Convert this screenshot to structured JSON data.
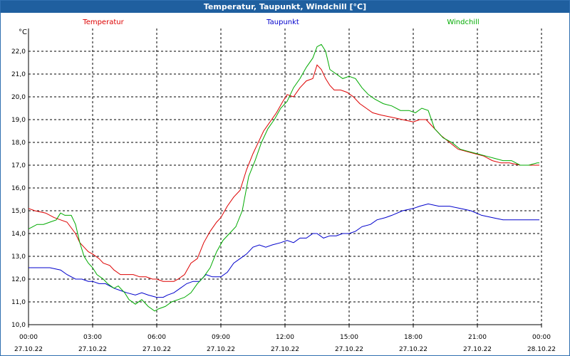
{
  "window": {
    "title": "Temperatur, Taupunkt, Windchill [°C]"
  },
  "colors": {
    "temperature": "#dd0000",
    "dewpoint": "#0000cc",
    "windchill": "#00aa00",
    "title_bg": "#1f5f9f",
    "grid": "#000000"
  },
  "chart_data": {
    "type": "line",
    "title": "Temperatur, Taupunkt, Windchill [°C]",
    "ylabel": "°C",
    "xlabel": "",
    "ylim": [
      10.0,
      22.0
    ],
    "xlim": [
      0,
      24
    ],
    "grid": true,
    "legend_placement": "top",
    "y_ticks": [
      "22,0",
      "21,0",
      "20,0",
      "19,0",
      "18,0",
      "17,0",
      "16,0",
      "15,0",
      "14,0",
      "13,0",
      "12,0",
      "11,0",
      "10,0"
    ],
    "y_tick_values": [
      22,
      21,
      20,
      19,
      18,
      17,
      16,
      15,
      14,
      13,
      12,
      11,
      10
    ],
    "x_ticks": [
      {
        "time": "00:00",
        "date": "27.10.22"
      },
      {
        "time": "03:00",
        "date": "27.10.22"
      },
      {
        "time": "06:00",
        "date": "27.10.22"
      },
      {
        "time": "09:00",
        "date": "27.10.22"
      },
      {
        "time": "12:00",
        "date": "27.10.22"
      },
      {
        "time": "15:00",
        "date": "27.10.22"
      },
      {
        "time": "18:00",
        "date": "27.10.22"
      },
      {
        "time": "21:00",
        "date": "27.10.22"
      },
      {
        "time": "00:00",
        "date": "28.10.22"
      }
    ],
    "series": [
      {
        "name": "Temperatur",
        "color": "#dd0000",
        "x": [
          0,
          0.3,
          0.8,
          1.2,
          1.5,
          1.8,
          2.2,
          2.4,
          2.6,
          2.8,
          3.0,
          3.3,
          3.5,
          3.8,
          4.0,
          4.3,
          4.6,
          4.9,
          5.2,
          5.5,
          5.8,
          6.0,
          6.3,
          6.5,
          6.8,
          7.0,
          7.3,
          7.6,
          7.9,
          8.2,
          8.5,
          8.8,
          9.0,
          9.3,
          9.6,
          9.9,
          10.2,
          10.5,
          10.8,
          11.0,
          11.3,
          11.6,
          11.9,
          12.1,
          12.4,
          12.7,
          13.0,
          13.3,
          13.5,
          13.7,
          13.9,
          14.1,
          14.3,
          14.6,
          14.9,
          15.2,
          15.5,
          15.8,
          16.1,
          16.5,
          17.0,
          17.5,
          18.0,
          18.3,
          18.6,
          18.9,
          19.3,
          19.7,
          20.1,
          20.5,
          20.9,
          21.3,
          21.7,
          22.1,
          22.5,
          23.0,
          23.5,
          23.9
        ],
        "y": [
          15.1,
          15.0,
          14.9,
          14.7,
          14.6,
          14.5,
          14.0,
          13.6,
          13.4,
          13.2,
          13.1,
          12.9,
          12.7,
          12.6,
          12.4,
          12.2,
          12.2,
          12.2,
          12.1,
          12.1,
          12.0,
          12.0,
          11.9,
          11.9,
          11.9,
          12.0,
          12.2,
          12.7,
          12.9,
          13.6,
          14.1,
          14.5,
          14.7,
          15.2,
          15.6,
          15.9,
          16.8,
          17.5,
          18.1,
          18.5,
          18.9,
          19.3,
          19.8,
          20.1,
          20.0,
          20.4,
          20.7,
          20.8,
          21.4,
          21.2,
          20.8,
          20.5,
          20.3,
          20.3,
          20.2,
          20.0,
          19.7,
          19.5,
          19.3,
          19.2,
          19.1,
          19.0,
          18.9,
          19.0,
          19.0,
          18.7,
          18.3,
          18.0,
          17.7,
          17.6,
          17.5,
          17.4,
          17.2,
          17.1,
          17.1,
          17.0,
          17.0,
          17.0
        ]
      },
      {
        "name": "Taupunkt",
        "color": "#0000cc",
        "x": [
          0,
          0.5,
          1.0,
          1.5,
          1.8,
          2.2,
          2.5,
          2.8,
          3.0,
          3.3,
          3.6,
          4.0,
          4.3,
          4.6,
          5.0,
          5.3,
          5.6,
          6.0,
          6.3,
          6.5,
          6.8,
          7.1,
          7.4,
          7.7,
          8.0,
          8.3,
          8.6,
          9.0,
          9.3,
          9.6,
          9.9,
          10.2,
          10.5,
          10.8,
          11.1,
          11.4,
          11.8,
          12.1,
          12.4,
          12.7,
          13.0,
          13.3,
          13.5,
          13.8,
          14.1,
          14.4,
          14.7,
          15.0,
          15.3,
          15.6,
          16.0,
          16.3,
          16.7,
          17.0,
          17.5,
          18.0,
          18.3,
          18.7,
          19.2,
          19.7,
          20.2,
          20.7,
          21.2,
          21.7,
          22.2,
          22.7,
          23.2,
          23.6,
          23.9
        ],
        "y": [
          12.5,
          12.5,
          12.5,
          12.4,
          12.2,
          12.0,
          12.0,
          11.9,
          11.9,
          11.8,
          11.8,
          11.6,
          11.5,
          11.4,
          11.3,
          11.4,
          11.3,
          11.2,
          11.2,
          11.3,
          11.4,
          11.6,
          11.8,
          11.9,
          11.9,
          12.2,
          12.1,
          12.1,
          12.3,
          12.7,
          12.9,
          13.1,
          13.4,
          13.5,
          13.4,
          13.5,
          13.6,
          13.7,
          13.6,
          13.8,
          13.8,
          14.0,
          14.0,
          13.8,
          13.9,
          13.9,
          14.0,
          14.0,
          14.1,
          14.3,
          14.4,
          14.6,
          14.7,
          14.8,
          15.0,
          15.1,
          15.2,
          15.3,
          15.2,
          15.2,
          15.1,
          15.0,
          14.8,
          14.7,
          14.6,
          14.6,
          14.6,
          14.6,
          14.6
        ]
      },
      {
        "name": "Windchill",
        "color": "#00aa00",
        "x": [
          0,
          0.2,
          0.4,
          0.7,
          1.0,
          1.3,
          1.5,
          1.7,
          2.0,
          2.2,
          2.4,
          2.6,
          2.8,
          3.0,
          3.2,
          3.5,
          3.7,
          4.0,
          4.2,
          4.5,
          4.7,
          5.0,
          5.3,
          5.6,
          5.9,
          6.1,
          6.4,
          6.7,
          7.0,
          7.3,
          7.6,
          7.9,
          8.2,
          8.5,
          8.8,
          9.1,
          9.4,
          9.7,
          10.0,
          10.3,
          10.6,
          10.9,
          11.2,
          11.5,
          11.8,
          12.1,
          12.4,
          12.7,
          13.0,
          13.3,
          13.5,
          13.7,
          13.9,
          14.1,
          14.4,
          14.7,
          15.0,
          15.3,
          15.6,
          15.9,
          16.2,
          16.6,
          17.0,
          17.4,
          17.8,
          18.1,
          18.4,
          18.7,
          19.0,
          19.4,
          19.8,
          20.2,
          20.6,
          21.0,
          21.4,
          21.8,
          22.2,
          22.6,
          23.0,
          23.4,
          23.8,
          23.9
        ],
        "y": [
          14.2,
          14.3,
          14.4,
          14.4,
          14.5,
          14.6,
          14.9,
          14.8,
          14.8,
          14.4,
          13.6,
          13.0,
          12.7,
          12.5,
          12.2,
          12.0,
          11.8,
          11.6,
          11.7,
          11.4,
          11.1,
          10.9,
          11.1,
          10.8,
          10.6,
          10.7,
          10.8,
          11.0,
          11.1,
          11.2,
          11.4,
          11.8,
          12.1,
          12.5,
          13.2,
          13.7,
          14.0,
          14.3,
          15.0,
          16.5,
          17.2,
          18.0,
          18.6,
          19.0,
          19.5,
          19.8,
          20.4,
          20.8,
          21.3,
          21.7,
          22.2,
          22.3,
          22.0,
          21.2,
          21.0,
          20.8,
          20.9,
          20.8,
          20.4,
          20.1,
          19.9,
          19.7,
          19.6,
          19.4,
          19.4,
          19.3,
          19.5,
          19.4,
          18.6,
          18.2,
          18.0,
          17.7,
          17.6,
          17.5,
          17.4,
          17.3,
          17.2,
          17.2,
          17.0,
          17.0,
          17.1,
          17.1
        ]
      }
    ]
  }
}
